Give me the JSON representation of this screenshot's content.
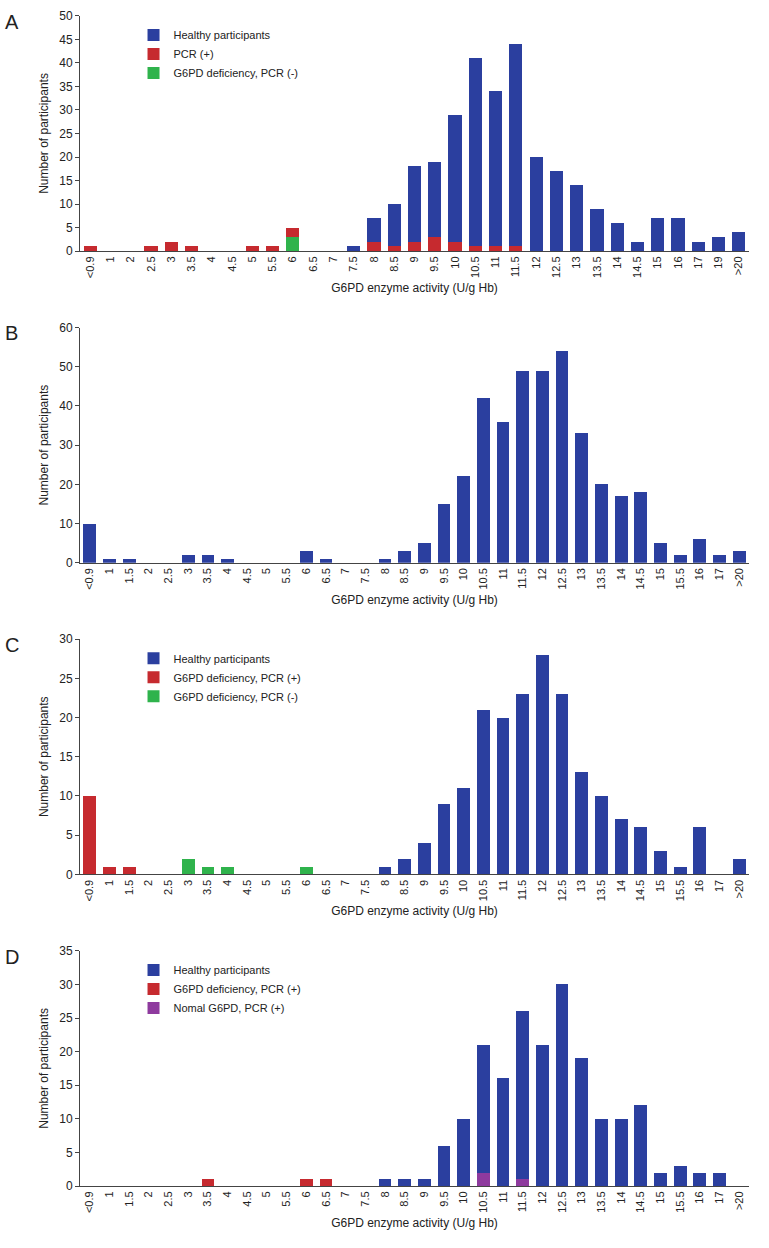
{
  "chart_data": [
    {
      "type": "bar",
      "title": "A",
      "stacked": true,
      "grid": false,
      "legend": "upper left",
      "x_label": "G6PD enzyme activity (U/g Hb)",
      "y_label": "Number of participants",
      "categories": [
        "<0.9",
        "1",
        "2",
        "2.5",
        "3",
        "3.5",
        "4",
        "4.5",
        "5",
        "5.5",
        "6",
        "6.5",
        "7",
        "7.5",
        "8",
        "8.5",
        "9",
        "9.5",
        "10",
        "10.5",
        "11",
        "11.5",
        "12",
        "12.5",
        "13",
        "13.5",
        "14",
        "14.5",
        "15",
        "16",
        "17",
        "19",
        ">20"
      ],
      "series": [
        {
          "name": "Healthy participants",
          "color": "#2b3f9f",
          "values": [
            0,
            0,
            0,
            0,
            0,
            0,
            0,
            0,
            0,
            0,
            0,
            0,
            0,
            1,
            5,
            9,
            16,
            16,
            27,
            40,
            33,
            43,
            20,
            17,
            14,
            9,
            6,
            2,
            7,
            7,
            2,
            3,
            4
          ]
        },
        {
          "name": "PCR (+)",
          "color": "#c62a2f",
          "values": [
            1,
            0,
            0,
            1,
            2,
            1,
            0,
            0,
            1,
            1,
            2,
            0,
            0,
            0,
            2,
            1,
            2,
            3,
            2,
            1,
            1,
            1,
            0,
            0,
            0,
            0,
            0,
            0,
            0,
            0,
            0,
            0,
            0
          ]
        },
        {
          "name": "G6PD deficiency, PCR (-)",
          "color": "#2fb34c",
          "values": [
            0,
            0,
            0,
            0,
            0,
            0,
            0,
            0,
            0,
            0,
            3,
            0,
            0,
            0,
            0,
            0,
            0,
            0,
            0,
            0,
            0,
            0,
            0,
            0,
            0,
            0,
            0,
            0,
            0,
            0,
            0,
            0,
            0
          ]
        }
      ],
      "ylim": [
        0,
        50
      ],
      "yticks": [
        0,
        5,
        10,
        15,
        20,
        25,
        30,
        35,
        40,
        45,
        50
      ]
    },
    {
      "type": "bar",
      "title": "B",
      "stacked": true,
      "grid": false,
      "x_label": "G6PD enzyme activity (U/g Hb)",
      "y_label": "Number of participants",
      "categories": [
        "<0.9",
        "1",
        "1.5",
        "2",
        "2.5",
        "3",
        "3.5",
        "4",
        "4.5",
        "5",
        "5.5",
        "6",
        "6.5",
        "7",
        "7.5",
        "8",
        "8.5",
        "9",
        "9.5",
        "10",
        "10.5",
        "11",
        "11.5",
        "12",
        "12.5",
        "13",
        "13.5",
        "14",
        "14.5",
        "15",
        "15.5",
        "16",
        "17",
        ">20"
      ],
      "series": [
        {
          "color": "#2b3f9f",
          "values": [
            10,
            1,
            1,
            0,
            0,
            2,
            2,
            1,
            0,
            0,
            0,
            3,
            1,
            0,
            0,
            1,
            3,
            5,
            15,
            22,
            42,
            36,
            49,
            49,
            54,
            33,
            20,
            17,
            18,
            5,
            2,
            6,
            2,
            3
          ]
        }
      ],
      "ylim": [
        0,
        60
      ],
      "yticks": [
        0,
        10,
        20,
        30,
        40,
        50,
        60
      ]
    },
    {
      "type": "bar",
      "title": "C",
      "stacked": true,
      "grid": false,
      "legend": "upper left",
      "x_label": "G6PD enzyme activity (U/g Hb)",
      "y_label": "Number of participants",
      "categories": [
        "<0.9",
        "1",
        "1.5",
        "2",
        "2.5",
        "3",
        "3.5",
        "4",
        "4.5",
        "5",
        "5.5",
        "6",
        "6.5",
        "7",
        "7.5",
        "8",
        "8.5",
        "9",
        "9.5",
        "10",
        "10.5",
        "11",
        "11.5",
        "12",
        "12.5",
        "13",
        "13.5",
        "14",
        "14.5",
        "15",
        "15.5",
        "16",
        "17",
        ">20"
      ],
      "series": [
        {
          "name": "Healthy participants",
          "color": "#2b3f9f",
          "values": [
            0,
            0,
            0,
            0,
            0,
            0,
            0,
            0,
            0,
            0,
            0,
            0,
            0,
            0,
            0,
            1,
            2,
            4,
            9,
            11,
            21,
            20,
            23,
            28,
            23,
            13,
            10,
            7,
            6,
            3,
            1,
            6,
            0,
            2
          ]
        },
        {
          "name": "G6PD deficiency, PCR (+)",
          "color": "#c62a2f",
          "values": [
            10,
            1,
            1,
            0,
            0,
            0,
            0,
            0,
            0,
            0,
            0,
            0,
            0,
            0,
            0,
            0,
            0,
            0,
            0,
            0,
            0,
            0,
            0,
            0,
            0,
            0,
            0,
            0,
            0,
            0,
            0,
            0,
            0,
            0
          ]
        },
        {
          "name": "G6PD deficiency, PCR (-)",
          "color": "#2fb34c",
          "values": [
            0,
            0,
            0,
            0,
            0,
            2,
            1,
            1,
            0,
            0,
            0,
            1,
            0,
            0,
            0,
            0,
            0,
            0,
            0,
            0,
            0,
            0,
            0,
            0,
            0,
            0,
            0,
            0,
            0,
            0,
            0,
            0,
            0,
            0
          ]
        }
      ],
      "ylim": [
        0,
        30
      ],
      "yticks": [
        0,
        5,
        10,
        15,
        20,
        25,
        30
      ]
    },
    {
      "type": "bar",
      "title": "D",
      "stacked": true,
      "grid": false,
      "legend": "upper left",
      "x_label": "G6PD enzyme activity (U/g Hb)",
      "y_label": "Number of participants",
      "categories": [
        "<0.9",
        "1",
        "1.5",
        "2",
        "2.5",
        "3",
        "3.5",
        "4",
        "4.5",
        "5",
        "5.5",
        "6",
        "6.5",
        "7",
        "7.5",
        "8",
        "8.5",
        "9",
        "9.5",
        "10",
        "10.5",
        "11",
        "11.5",
        "12",
        "12.5",
        "13",
        "13.5",
        "14",
        "14.5",
        "15",
        "15.5",
        "16",
        "17",
        ">20"
      ],
      "series": [
        {
          "name": "Healthy participants",
          "color": "#2b3f9f",
          "values": [
            0,
            0,
            0,
            0,
            0,
            0,
            0,
            0,
            0,
            0,
            0,
            0,
            0,
            0,
            0,
            1,
            1,
            1,
            6,
            10,
            19,
            16,
            25,
            21,
            30,
            19,
            10,
            10,
            12,
            2,
            3,
            2,
            2,
            0
          ]
        },
        {
          "name": "G6PD deficiency, PCR (+)",
          "color": "#c62a2f",
          "values": [
            0,
            0,
            0,
            0,
            0,
            0,
            1,
            0,
            0,
            0,
            0,
            1,
            1,
            0,
            0,
            0,
            0,
            0,
            0,
            0,
            0,
            0,
            0,
            0,
            0,
            0,
            0,
            0,
            0,
            0,
            0,
            0,
            0,
            0
          ]
        },
        {
          "name": "Nomal G6PD, PCR (+)",
          "color": "#8e3a9e",
          "values": [
            0,
            0,
            0,
            0,
            0,
            0,
            0,
            0,
            0,
            0,
            0,
            0,
            0,
            0,
            0,
            0,
            0,
            0,
            0,
            0,
            2,
            0,
            1,
            0,
            0,
            0,
            0,
            0,
            0,
            0,
            0,
            0,
            0,
            0
          ]
        }
      ],
      "ylim": [
        0,
        35
      ],
      "yticks": [
        0,
        5,
        10,
        15,
        20,
        25,
        30,
        35
      ]
    }
  ]
}
